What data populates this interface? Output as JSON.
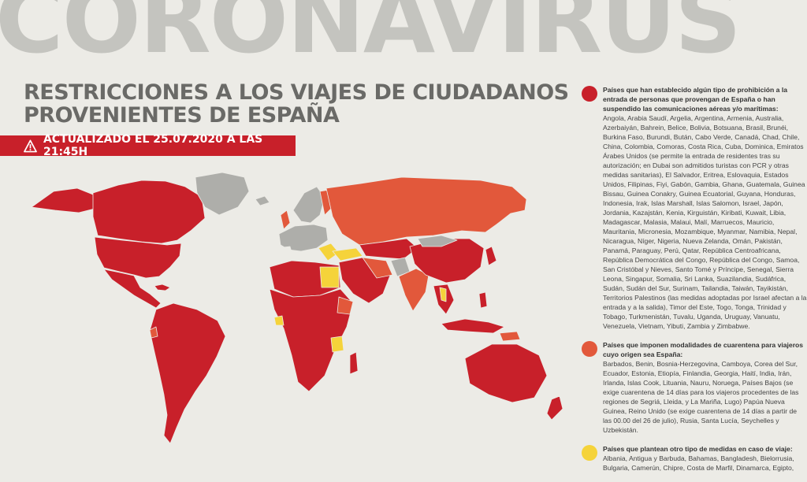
{
  "header": {
    "big_title": "CORONAVIRUS",
    "subtitle_line1": "RESTRICCIONES A LOS VIAJES DE CIUDADANOS",
    "subtitle_line2": "PROVENIENTES DE ESPAÑA",
    "update_text": "ACTUALIZADO EL 25.07.2020 A LAS 21:45H"
  },
  "colors": {
    "prohibition": "#c8202a",
    "quarantine": "#e2583b",
    "other": "#f5d33a",
    "no_data": "#aeaeaa",
    "background": "#ecebe6"
  },
  "icons": {
    "update_icon": "warning-triangle-icon"
  },
  "legend": [
    {
      "title": "Países que han establecido algún tipo de prohibición a la entrada de personas que provengan de España o han suspendido las comunicaciones aéreas y/o marítimas:",
      "countries": "Angola, Arabia Saudí, Argelia, Argentina, Armenia, Australia, Azerbaiyán, Bahrein, Belice, Bolivia, Botsuana, Brasil, Brunéi, Burkina Faso, Burundi, Bután, Cabo Verde, Canadá, Chad, Chile, China, Colombia, Comoras, Costa Rica, Cuba, Dominica, Emiratos Árabes Unidos (se permite la entrada de residentes tras su autorización; en Dubai son admitidos turistas con PCR y otras medidas sanitarias), El Salvador, Eritrea, Eslovaquia, Estados Unidos, Filipinas, Fiyi, Gabón, Gambia, Ghana, Guatemala, Guinea Bissau, Guinea Conakry, Guinea Ecuatorial, Guyana, Honduras, Indonesia, Irak, Islas Marshall, Islas Salomon, Israel, Japón, Jordania, Kazajstán, Kenia, Kirguistán, Kiribati, Kuwait, Libia, Madagascar, Malasia, Malaui, Malí, Marruecos, Mauricio, Mauritania, Micronesia, Mozambique, Myanmar, Namibia, Nepal, Nicaragua, Níger, Nigeria, Nueva Zelanda, Omán, Pakistán, Panamá, Paraguay, Perú, Qatar, República Centroafricana, República Democrática del Congo, República del Congo, Samoa, San Cristóbal y Nieves, Santo Tomé y Príncipe, Senegal, Sierra Leona, Singapur, Somalia, Sri Lanka, Suazilandia, Sudáfrica, Sudán, Sudán del Sur, Surinam, Tailandia, Taiwán, Tayikistán, Territorios Palestinos (las medidas adoptadas por Israel afectan a la entrada y a la salida), Timor del Este, Togo, Tonga, Trinidad y Tobago, Turkmenistán, Tuvalu, Uganda, Uruguay, Vanuatu, Venezuela, Vietnam, Yibuti, Zambia y Zimbabwe."
    },
    {
      "title": "Países que imponen modalidades de cuarentena para viajeros cuyo origen sea España:",
      "countries": "Barbados, Benin, Bosnia-Herzegovina, Camboya, Corea del Sur, Ecuador, Estonia, Etiopía, Finlandia, Georgia, Haití, India, Irán, Irlanda, Islas Cook, Lituania, Nauru, Noruega, Países Bajos (se exige cuarentena de 14 días para los viajeros procedentes de las regiones de Segriá, Lleida, y La Mariña, Lugo) Papúa Nueva Guinea, Reino Unido (se exige cuarentena de 14 días a partir de las 00.00 del 26 de julio), Rusia, Santa Lucía, Seychelles y Uzbekistán."
    },
    {
      "title": "Países que plantean otro tipo de medidas en caso de viaje:",
      "countries": "Albania, Antigua y Barbuda, Bahamas, Bangladesh, Bielorrusia, Bulgaria, Camerún, Chipre, Costa de Marfil, Dinamarca, Egipto,"
    }
  ]
}
